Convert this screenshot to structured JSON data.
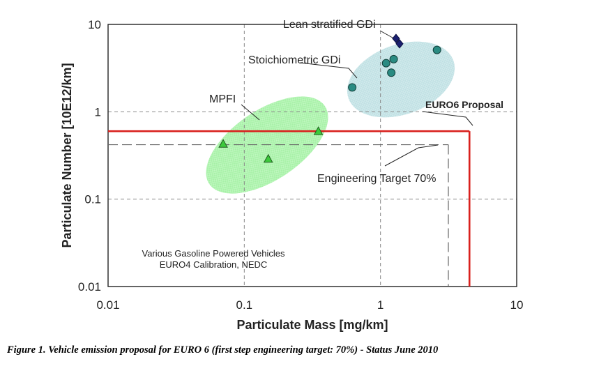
{
  "chart_data": {
    "type": "scatter",
    "xlabel": "Particulate Mass [mg/km]",
    "ylabel": "Particulate Number [10E12/km]",
    "x_scale": "log",
    "y_scale": "log",
    "xlim": [
      0.01,
      10
    ],
    "ylim": [
      0.01,
      10
    ],
    "x_tick_labels": [
      "0.01",
      "0.1",
      "1",
      "10"
    ],
    "y_tick_labels": [
      "0.01",
      "0.1",
      "1",
      "10"
    ],
    "grid": true,
    "series": [
      {
        "name": "MPFI",
        "marker": "triangle",
        "color": "#3cc93c",
        "points": [
          [
            0.07,
            0.43
          ],
          [
            0.15,
            0.29
          ],
          [
            0.35,
            0.6
          ]
        ]
      },
      {
        "name": "Stoichiometric GDi",
        "marker": "circle",
        "color": "#2a8b82",
        "points": [
          [
            0.62,
            1.9
          ],
          [
            1.1,
            3.6
          ],
          [
            1.2,
            2.8
          ],
          [
            1.25,
            4.0
          ],
          [
            2.6,
            5.1
          ]
        ]
      },
      {
        "name": "Lean stratified GDi",
        "marker": "diamond",
        "color": "#1a2070",
        "points": [
          [
            1.3,
            6.9
          ],
          [
            1.38,
            6.0
          ]
        ]
      }
    ],
    "regions": [
      {
        "label": "MPFI",
        "color": "#9df09d"
      },
      {
        "label": "Stoichiometric GDi",
        "color": "#b9dcdf"
      }
    ],
    "limits": [
      {
        "label": "EURO6 Proposal",
        "x": 4.5,
        "y": 0.6,
        "color": "#d9201d",
        "style": "solid"
      },
      {
        "label": "Engineering Target 70%",
        "x": 3.15,
        "y": 0.42,
        "color": "#666666",
        "style": "dash"
      }
    ],
    "annotations": [
      "Various Gasoline Powered Vehicles",
      "EURO4 Calibration, NEDC"
    ]
  },
  "caption": "Figure 1. Vehicle emission proposal for EURO 6 (first step engineering target: 70%) - Status June 2010"
}
